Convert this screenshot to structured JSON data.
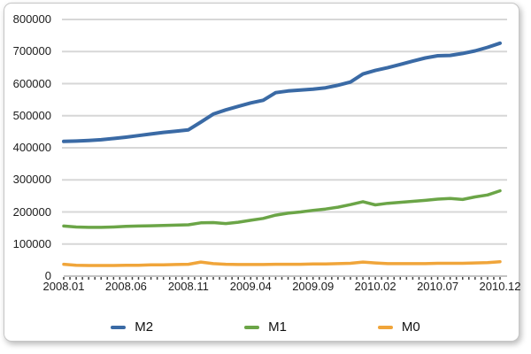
{
  "chart_data": {
    "type": "line",
    "title": "",
    "xlabel": "",
    "ylabel": "",
    "ylim": [
      0,
      800000
    ],
    "y_ticks": [
      0,
      100000,
      200000,
      300000,
      400000,
      500000,
      600000,
      700000,
      800000
    ],
    "n_points": 36,
    "x_tick_positions": [
      0,
      5,
      10,
      15,
      20,
      25,
      30,
      35
    ],
    "x_tick_labels": [
      "2008.01",
      "2008.06",
      "2008.11",
      "2009.04",
      "2009.09",
      "2010.02",
      "2010.07",
      "2010.12"
    ],
    "grid": true,
    "legend_position": "bottom",
    "colors": {
      "grid": "#d7d7d7",
      "axis": "#8a8a8a",
      "tick": "#3f3f3f",
      "text": "#1c1c1c"
    },
    "series": [
      {
        "name": "M2",
        "color": "#3a6aa5",
        "values": [
          420000,
          421000,
          423000,
          425000,
          429000,
          433000,
          438000,
          443000,
          448000,
          452000,
          456000,
          480000,
          505000,
          518000,
          529000,
          540000,
          548000,
          572000,
          577000,
          580000,
          583000,
          587000,
          595000,
          605000,
          630000,
          641000,
          650000,
          660000,
          670000,
          680000,
          687000,
          688000,
          694000,
          702000,
          713000,
          726000
        ]
      },
      {
        "name": "M1",
        "color": "#6ba547",
        "values": [
          156000,
          153000,
          152000,
          152000,
          153000,
          155000,
          156000,
          157000,
          158000,
          159000,
          160000,
          166000,
          167000,
          164000,
          168000,
          174000,
          180000,
          190000,
          196000,
          200000,
          205000,
          209000,
          215000,
          223000,
          232000,
          222000,
          227000,
          230000,
          233000,
          236000,
          240000,
          242000,
          239000,
          247000,
          253000,
          266000
        ]
      },
      {
        "name": "M0",
        "color": "#f0a53a",
        "values": [
          37000,
          34000,
          33000,
          33000,
          33000,
          34000,
          34000,
          35000,
          35000,
          36000,
          37000,
          44000,
          39000,
          37000,
          36000,
          36000,
          36000,
          37000,
          37000,
          37000,
          38000,
          38000,
          39000,
          40000,
          44000,
          41000,
          39000,
          39000,
          39000,
          39000,
          40000,
          40000,
          40000,
          41000,
          42000,
          45000
        ]
      }
    ]
  }
}
